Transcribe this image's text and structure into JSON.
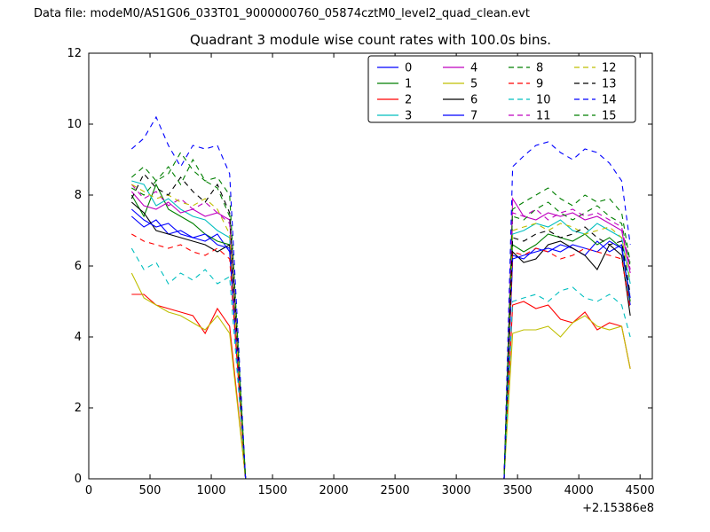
{
  "header": "Data file: modeM0/AS1G06_033T01_9000000760_05874cztM0_level2_quad_clean.evt",
  "chart_data": {
    "type": "line",
    "title": "Quadrant 3 module wise count rates with 100.0s bins.",
    "xlabel": "",
    "ylabel": "",
    "xlim": [
      0,
      4600
    ],
    "ylim": [
      0,
      12
    ],
    "x_ticks": [
      0,
      500,
      1000,
      1500,
      2000,
      2500,
      3000,
      3500,
      4000,
      4500
    ],
    "y_ticks": [
      0,
      2,
      4,
      6,
      8,
      10,
      12
    ],
    "x_offset_label": "+2.15386e8",
    "grid": false,
    "legend_position": "upper center",
    "legend_columns": 4,
    "x1": [
      350,
      450,
      550,
      650,
      750,
      850,
      950,
      1050,
      1150
    ],
    "x2": [
      3460,
      3550,
      3650,
      3750,
      3850,
      3950,
      4050,
      4150,
      4250,
      4350,
      4420
    ],
    "gap": {
      "x_drop_zero": 1280,
      "x_rise_zero": 3390,
      "gap_value": 0
    },
    "series": [
      {
        "name": "0",
        "color": "#0000ff",
        "dash": false,
        "seg1": [
          7.4,
          7.1,
          7.3,
          6.9,
          7.0,
          6.8,
          6.7,
          6.9,
          6.4
        ],
        "seg2": [
          6.3,
          6.2,
          6.5,
          6.4,
          6.6,
          6.5,
          6.3,
          6.7,
          6.4,
          6.6,
          4.9
        ]
      },
      {
        "name": "1",
        "color": "#007f00",
        "dash": false,
        "seg1": [
          8.0,
          7.4,
          8.3,
          7.6,
          7.4,
          7.2,
          6.9,
          6.7,
          6.6
        ],
        "seg2": [
          6.6,
          6.4,
          6.6,
          6.9,
          6.8,
          6.7,
          6.9,
          6.6,
          6.8,
          6.5,
          5.0
        ]
      },
      {
        "name": "2",
        "color": "#ff0000",
        "dash": false,
        "seg1": [
          5.2,
          5.2,
          4.9,
          4.8,
          4.7,
          4.6,
          4.1,
          4.8,
          4.3
        ],
        "seg2": [
          4.9,
          5.0,
          4.8,
          4.9,
          4.5,
          4.4,
          4.7,
          4.2,
          4.4,
          4.3,
          3.1
        ]
      },
      {
        "name": "3",
        "color": "#00bfbf",
        "dash": false,
        "seg1": [
          8.4,
          8.3,
          7.7,
          7.9,
          7.6,
          7.4,
          7.3,
          7.0,
          6.8
        ],
        "seg2": [
          6.9,
          7.0,
          7.2,
          7.1,
          7.3,
          7.0,
          6.9,
          7.2,
          7.0,
          6.8,
          5.5
        ]
      },
      {
        "name": "4",
        "color": "#bf00bf",
        "dash": false,
        "seg1": [
          8.1,
          7.7,
          7.6,
          7.8,
          7.5,
          7.6,
          7.4,
          7.5,
          7.3
        ],
        "seg2": [
          7.9,
          7.4,
          7.3,
          7.5,
          7.4,
          7.5,
          7.3,
          7.4,
          7.2,
          7.0,
          5.8
        ]
      },
      {
        "name": "5",
        "color": "#bfbf00",
        "dash": false,
        "seg1": [
          5.8,
          5.1,
          4.9,
          4.7,
          4.6,
          4.4,
          4.2,
          4.6,
          4.1
        ],
        "seg2": [
          4.1,
          4.2,
          4.2,
          4.3,
          4.0,
          4.4,
          4.6,
          4.3,
          4.2,
          4.3,
          3.1
        ]
      },
      {
        "name": "6",
        "color": "#000000",
        "dash": false,
        "seg1": [
          7.8,
          7.5,
          7.0,
          6.9,
          6.8,
          6.7,
          6.6,
          6.4,
          6.6
        ],
        "seg2": [
          6.4,
          6.1,
          6.2,
          6.6,
          6.7,
          6.5,
          6.3,
          5.9,
          6.6,
          6.3,
          4.6
        ]
      },
      {
        "name": "7",
        "color": "#0000ff",
        "dash": false,
        "seg1": [
          7.6,
          7.3,
          7.1,
          7.2,
          6.9,
          6.8,
          6.9,
          6.6,
          6.5
        ],
        "seg2": [
          6.2,
          6.3,
          6.4,
          6.5,
          6.4,
          6.6,
          6.5,
          6.4,
          6.7,
          6.5,
          5.1
        ]
      },
      {
        "name": "8",
        "color": "#007f00",
        "dash": true,
        "seg1": [
          8.2,
          8.0,
          8.4,
          8.8,
          8.3,
          9.0,
          8.4,
          8.2,
          7.4
        ],
        "seg2": [
          7.4,
          7.3,
          7.6,
          7.8,
          7.5,
          7.3,
          7.5,
          7.7,
          7.4,
          7.2,
          6.0
        ]
      },
      {
        "name": "9",
        "color": "#ff0000",
        "dash": true,
        "seg1": [
          6.9,
          6.7,
          6.6,
          6.5,
          6.6,
          6.4,
          6.3,
          6.5,
          6.2
        ],
        "seg2": [
          6.4,
          6.3,
          6.5,
          6.4,
          6.2,
          6.3,
          6.5,
          6.4,
          6.3,
          6.2,
          4.8
        ]
      },
      {
        "name": "10",
        "color": "#00bfbf",
        "dash": true,
        "seg1": [
          6.5,
          5.9,
          6.1,
          5.5,
          5.8,
          5.6,
          5.9,
          5.5,
          5.7
        ],
        "seg2": [
          5.0,
          5.1,
          5.2,
          5.0,
          5.3,
          5.4,
          5.1,
          5.0,
          5.2,
          4.9,
          4.0
        ]
      },
      {
        "name": "11",
        "color": "#bf00bf",
        "dash": true,
        "seg1": [
          8.3,
          7.9,
          8.1,
          7.7,
          7.9,
          7.6,
          7.8,
          7.5,
          7.2
        ],
        "seg2": [
          7.5,
          7.4,
          7.6,
          7.3,
          7.5,
          7.6,
          7.4,
          7.5,
          7.3,
          7.1,
          5.9
        ]
      },
      {
        "name": "12",
        "color": "#bfbf00",
        "dash": true,
        "seg1": [
          8.3,
          8.1,
          7.9,
          8.0,
          7.8,
          7.7,
          7.9,
          7.6,
          6.9
        ],
        "seg2": [
          7.0,
          7.1,
          7.2,
          7.0,
          7.2,
          7.1,
          6.9,
          7.0,
          7.1,
          6.8,
          5.6
        ]
      },
      {
        "name": "13",
        "color": "#000000",
        "dash": true,
        "seg1": [
          7.9,
          8.6,
          8.2,
          8.0,
          8.5,
          8.1,
          7.8,
          8.3,
          7.5
        ],
        "seg2": [
          6.8,
          6.7,
          6.9,
          7.0,
          6.8,
          6.9,
          7.1,
          6.8,
          6.6,
          6.7,
          5.2
        ]
      },
      {
        "name": "14",
        "color": "#0000ff",
        "dash": true,
        "seg1": [
          9.3,
          9.6,
          10.2,
          9.4,
          8.8,
          9.4,
          9.3,
          9.4,
          8.6
        ],
        "seg2": [
          8.8,
          9.1,
          9.4,
          9.5,
          9.2,
          9.0,
          9.3,
          9.2,
          8.9,
          8.4,
          6.6
        ]
      },
      {
        "name": "15",
        "color": "#007f00",
        "dash": true,
        "seg1": [
          8.5,
          8.8,
          8.4,
          8.6,
          9.2,
          8.7,
          8.4,
          8.5,
          8.0
        ],
        "seg2": [
          7.6,
          7.8,
          8.0,
          8.2,
          7.9,
          7.7,
          8.0,
          7.8,
          7.9,
          7.5,
          6.1
        ]
      }
    ]
  }
}
